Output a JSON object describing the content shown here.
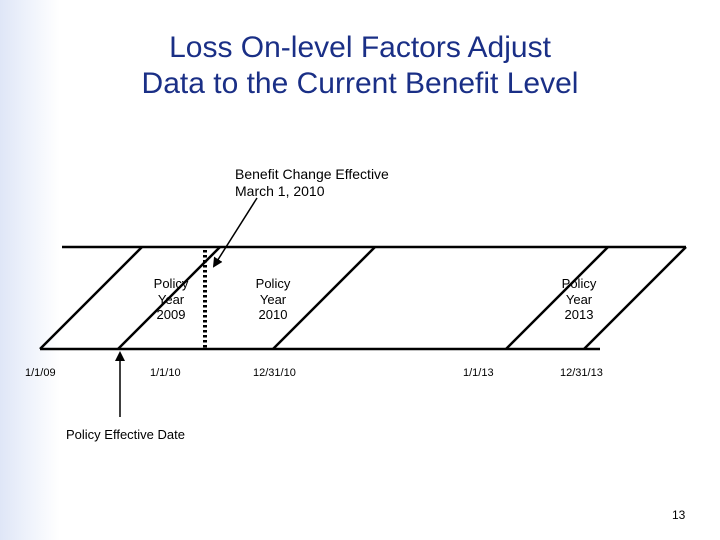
{
  "slide": {
    "title_line1": "Loss On-level Factors Adjust",
    "title_line2": "Data to the Current Benefit Level",
    "page_number": "13"
  },
  "callout": {
    "line1": "Benefit Change Effective",
    "line2": "March 1, 2010"
  },
  "policy_years": [
    {
      "line1": "Policy",
      "line2": "Year",
      "line3": "2009"
    },
    {
      "line1": "Policy",
      "line2": "Year",
      "line3": "2010"
    },
    {
      "line1": "Policy",
      "line2": "Year",
      "line3": "2013"
    }
  ],
  "dates": [
    "1/1/09",
    "1/1/10",
    "12/31/10",
    "1/1/13",
    "12/31/13"
  ],
  "effective_date_label": "Policy Effective Date",
  "colors": {
    "title": "#1a2f86",
    "lines": "#000000"
  }
}
